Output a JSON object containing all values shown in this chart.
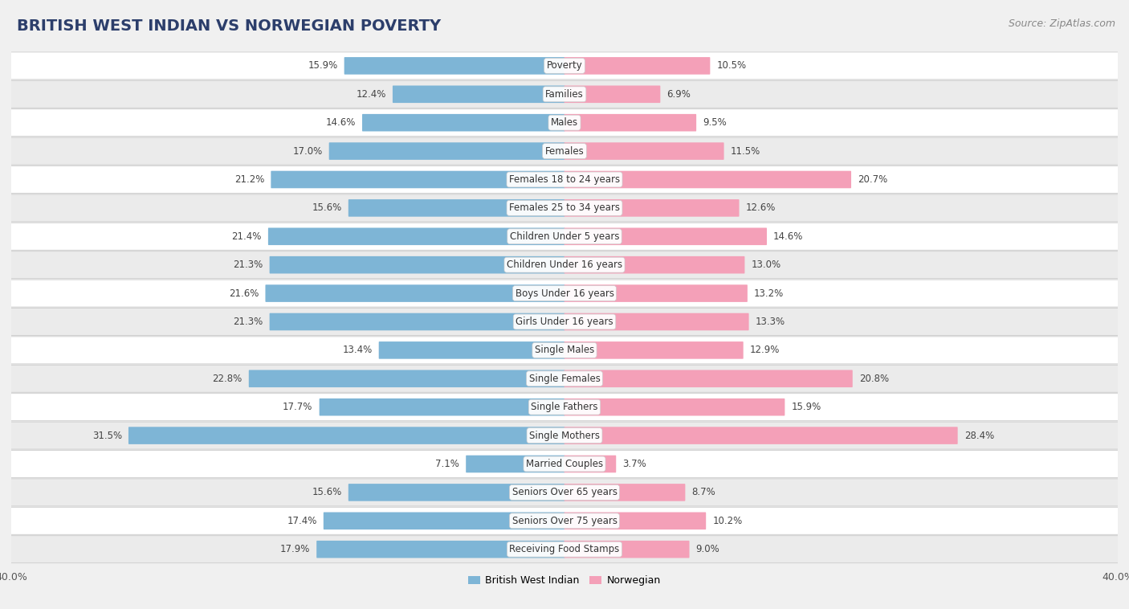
{
  "title": "BRITISH WEST INDIAN VS NORWEGIAN POVERTY",
  "source": "Source: ZipAtlas.com",
  "categories": [
    "Poverty",
    "Families",
    "Males",
    "Females",
    "Females 18 to 24 years",
    "Females 25 to 34 years",
    "Children Under 5 years",
    "Children Under 16 years",
    "Boys Under 16 years",
    "Girls Under 16 years",
    "Single Males",
    "Single Females",
    "Single Fathers",
    "Single Mothers",
    "Married Couples",
    "Seniors Over 65 years",
    "Seniors Over 75 years",
    "Receiving Food Stamps"
  ],
  "british_west_indian": [
    15.9,
    12.4,
    14.6,
    17.0,
    21.2,
    15.6,
    21.4,
    21.3,
    21.6,
    21.3,
    13.4,
    22.8,
    17.7,
    31.5,
    7.1,
    15.6,
    17.4,
    17.9
  ],
  "norwegian": [
    10.5,
    6.9,
    9.5,
    11.5,
    20.7,
    12.6,
    14.6,
    13.0,
    13.2,
    13.3,
    12.9,
    20.8,
    15.9,
    28.4,
    3.7,
    8.7,
    10.2,
    9.0
  ],
  "bwi_color": "#7eb5d6",
  "nor_color": "#f4a0b8",
  "bwi_label": "British West Indian",
  "nor_label": "Norwegian",
  "xlim": 40.0,
  "background_color": "#f0f0f0",
  "row_color_light": "#ffffff",
  "row_color_dark": "#ebebeb",
  "bar_height": 0.55,
  "title_fontsize": 14,
  "label_fontsize": 8.5,
  "value_fontsize": 8.5,
  "tick_fontsize": 9,
  "source_fontsize": 9
}
